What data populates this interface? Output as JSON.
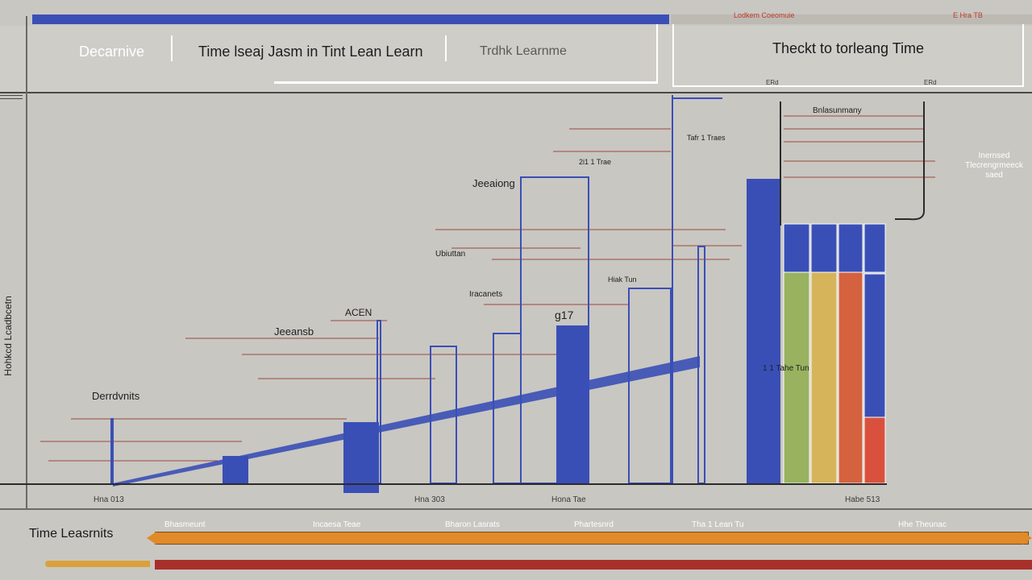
{
  "header": {
    "tabs": [
      {
        "label": "Decarnive",
        "active": true
      },
      {
        "label": "Time lseaj Jasm in Tint Lean Learn",
        "active": false
      },
      {
        "label": "Trdhk Learnme",
        "active": false
      }
    ],
    "panel_title": "Theckt to torleang Time",
    "right_notes": [
      "Lodkem Coeomuie",
      "E Hra TB"
    ],
    "dot_labels": [
      "ERd",
      "ERd"
    ]
  },
  "chart_data": {
    "type": "bar",
    "ylabel": "Hohkcd Lcadbcetn",
    "annotations": [
      "Derrdvnits",
      "Jeeansb",
      "Jeeaiong",
      "ACEN",
      "Ubiuttan",
      "Iracanets",
      "Bnlasunmany",
      "Inernsed Tlecrengrmeeck saed",
      "g17",
      "1 1 Tahe Tun",
      "Hiak Tun",
      "Tafr 1 Traes",
      "2i1 1 Trae"
    ],
    "x_tick_labels": [
      "Hna 013",
      "Hna 303",
      "Hona Tae",
      "Habe 513"
    ],
    "colors": {
      "blue": "#3a4fb6",
      "green": "#98b25f",
      "yellow": "#d6b45a",
      "orange": "#d4623f",
      "red": "#d9513c",
      "grid_red": "#9a4a3f"
    }
  },
  "timeline": {
    "label": "Time Leasrnits",
    "tick_labels": [
      "Bhasmeunt",
      "Incaesa Teae",
      "Bharon Lasrats",
      "Phartesnrd",
      "Tha 1 Lean Tu",
      "Hhe Theunac"
    ]
  }
}
